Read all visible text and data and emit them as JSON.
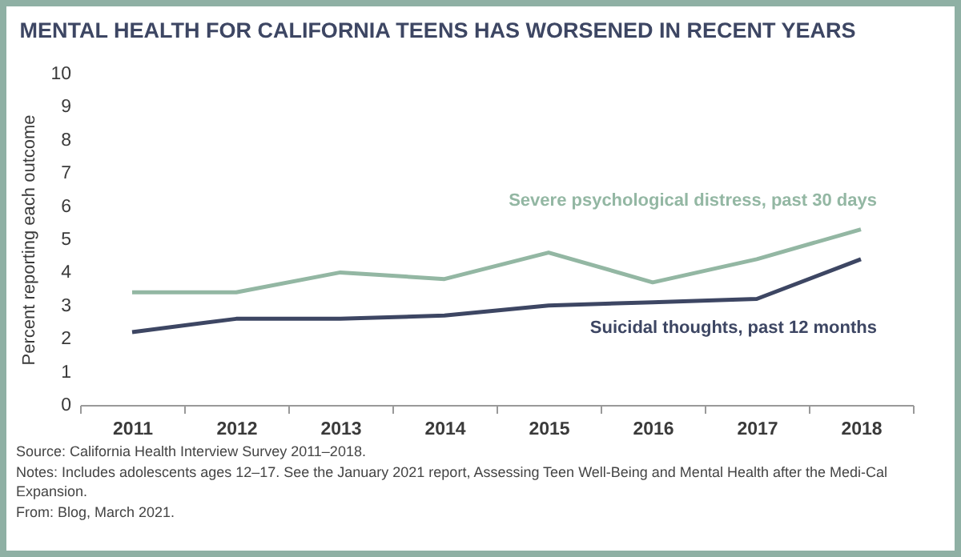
{
  "chart_data": {
    "type": "line",
    "title": "MENTAL HEALTH FOR CALIFORNIA TEENS HAS WORSENED IN RECENT YEARS",
    "ylabel": "Percent reporting each outcome",
    "categories": [
      "2011",
      "2012",
      "2013",
      "2014",
      "2015",
      "2016",
      "2017",
      "2018"
    ],
    "series": [
      {
        "name": "Severe psychological distress, past 30 days",
        "color": "#93b7a3",
        "values": [
          3.4,
          3.4,
          4.0,
          3.8,
          4.6,
          3.7,
          4.4,
          5.3
        ]
      },
      {
        "name": "Suicidal thoughts, past 12 months",
        "color": "#3d4663",
        "values": [
          2.2,
          2.6,
          2.6,
          2.7,
          3.0,
          3.1,
          3.2,
          4.4
        ]
      }
    ],
    "ylim": [
      0,
      10
    ],
    "yticks": [
      0,
      1,
      2,
      3,
      4,
      5,
      6,
      7,
      8,
      9,
      10
    ],
    "grid": false,
    "legend": false,
    "marker": "none",
    "line_style": "solid",
    "annotations": [
      "Source: California Health Interview Survey 2011–2018.",
      "Notes: Includes adolescents ages 12–17. See the January 2021 report, Assessing Teen Well-Being and Mental Health after the Medi-Cal Expansion.",
      "From: Blog, March 2021."
    ]
  }
}
